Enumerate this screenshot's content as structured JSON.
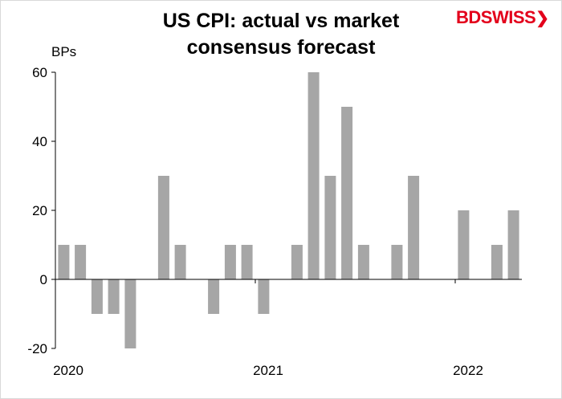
{
  "chart_data": {
    "type": "bar",
    "title_line1": "US CPI: actual vs market",
    "title_line2": "consensus forecast",
    "ylabel": "BPs",
    "ylim": [
      -20,
      60
    ],
    "yticks": [
      -20,
      0,
      20,
      40,
      60
    ],
    "xtick_labels": [
      "2020",
      "2021",
      "2022"
    ],
    "categories": [
      "2020-01",
      "2020-02",
      "2020-03",
      "2020-04",
      "2020-05",
      "2020-06",
      "2020-07",
      "2020-08",
      "2020-09",
      "2020-10",
      "2020-11",
      "2020-12",
      "2021-01",
      "2021-02",
      "2021-03",
      "2021-04",
      "2021-05",
      "2021-06",
      "2021-07",
      "2021-08",
      "2021-09",
      "2021-10",
      "2021-11",
      "2021-12",
      "2022-01",
      "2022-02",
      "2022-03",
      "2022-04"
    ],
    "values": [
      10,
      10,
      -10,
      -10,
      -20,
      0,
      30,
      10,
      0,
      -10,
      10,
      10,
      -10,
      0,
      10,
      60,
      30,
      50,
      10,
      0,
      10,
      30,
      0,
      0,
      20,
      0,
      10,
      20
    ],
    "bar_color": "#a6a6a6",
    "grid": false
  },
  "logo": {
    "part1": "BD",
    "part2": "SWISS",
    "arrow": "❯"
  }
}
